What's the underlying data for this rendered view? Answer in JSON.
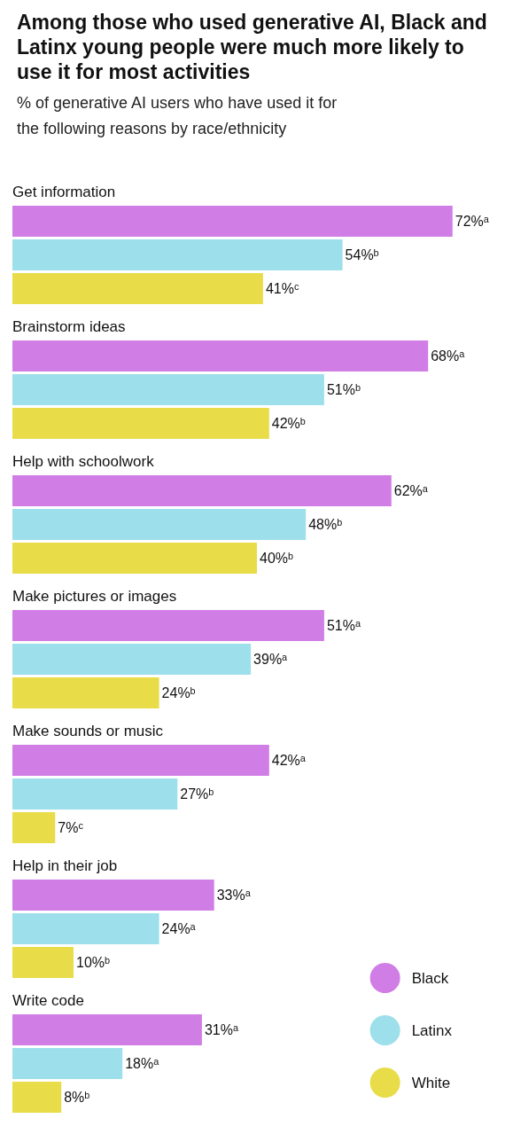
{
  "chart_data": {
    "type": "bar",
    "orientation": "horizontal",
    "title": "Among those who used generative AI, Black and Latinx young people were much more likely to use it for most activities",
    "subtitle": "% of generative AI users who have used it for the following reasons by race/ethnicity",
    "categories": [
      "Get information",
      "Brainstorm ideas",
      "Help with schoolwork",
      "Make pictures or images",
      "Make sounds or music",
      "Help in their job",
      "Write code"
    ],
    "series": [
      {
        "name": "Black",
        "color": "#d17de6",
        "values": [
          72,
          68,
          62,
          51,
          42,
          33,
          31
        ],
        "value_labels": [
          "72%ᵃ",
          "68%ᵃ",
          "62%ᵃ",
          "51%ᵃ",
          "42%ᵃ",
          "33%ᵃ",
          "31%ᵃ"
        ]
      },
      {
        "name": "Latinx",
        "color": "#9ddfea",
        "values": [
          54,
          51,
          48,
          39,
          27,
          24,
          18
        ],
        "value_labels": [
          "54%ᵇ",
          "51%ᵇ",
          "48%ᵇ",
          "39%ᵃ",
          "27%ᵇ",
          "24%ᵃ",
          "18%ᵃ"
        ]
      },
      {
        "name": "White",
        "color": "#e8dc48",
        "values": [
          41,
          42,
          40,
          24,
          7,
          10,
          8
        ],
        "value_labels": [
          "41%ᶜ",
          "42%ᵇ",
          "40%ᵇ",
          "24%ᵇ",
          "7%ᶜ",
          "10%ᵇ",
          "8%ᵇ"
        ]
      }
    ],
    "legend": "bottom right"
  }
}
